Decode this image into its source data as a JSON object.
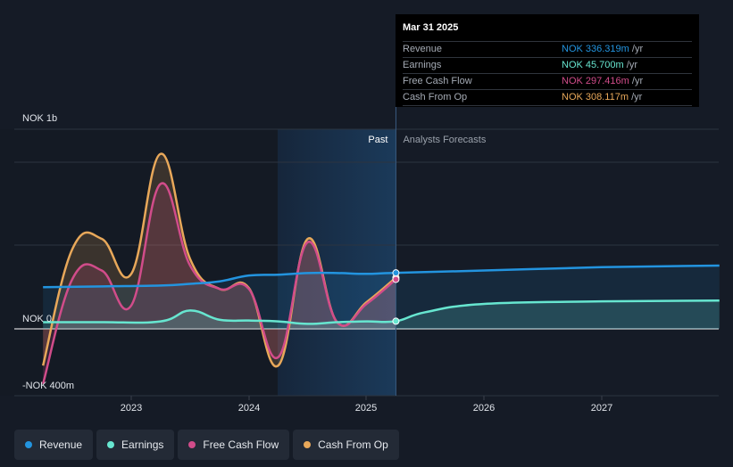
{
  "colors": {
    "background": "#151b26",
    "revenue": "#2394df",
    "earnings": "#67e6d0",
    "free_cash_flow": "#d14c8a",
    "cash_from_op": "#e8a85a",
    "past_region": "#19324d"
  },
  "tooltip": {
    "date": "Mar 31 2025",
    "rows": [
      {
        "name": "Revenue",
        "value": "NOK 336.319m",
        "unit": " /yr",
        "color": "#2394df"
      },
      {
        "name": "Earnings",
        "value": "NOK 45.700m",
        "unit": " /yr",
        "color": "#67e6d0"
      },
      {
        "name": "Free Cash Flow",
        "value": "NOK 297.416m",
        "unit": " /yr",
        "color": "#d14c8a"
      },
      {
        "name": "Cash From Op",
        "value": "NOK 308.117m",
        "unit": " /yr",
        "color": "#e8a85a"
      }
    ]
  },
  "legend": [
    {
      "label": "Revenue",
      "color": "#2394df",
      "icon": "dot-icon"
    },
    {
      "label": "Earnings",
      "color": "#67e6d0",
      "icon": "dot-icon"
    },
    {
      "label": "Free Cash Flow",
      "color": "#d14c8a",
      "icon": "dot-icon"
    },
    {
      "label": "Cash From Op",
      "color": "#e8a85a",
      "icon": "dot-icon"
    }
  ],
  "chart_data": {
    "type": "line",
    "title": "",
    "xlabel": "",
    "ylabel": "",
    "y_tick_labels": [
      "NOK 1b",
      "NOK 0",
      "-NOK 400m"
    ],
    "x_tick_labels": [
      "2023",
      "2024",
      "2025",
      "2026",
      "2027"
    ],
    "region_labels": {
      "past": "Past",
      "forecast": "Analysts Forecasts"
    },
    "past_end": 2025.25,
    "xlim": [
      2022.25,
      2028.0
    ],
    "ylim": [
      -400,
      1200
    ],
    "unit": "NOK m",
    "grid": true,
    "legend_position": "bottom",
    "series": [
      {
        "name": "Revenue",
        "key": "revenue",
        "x": [
          2022.25,
          2022.75,
          2023.25,
          2023.5,
          2023.75,
          2024.0,
          2024.25,
          2024.5,
          2024.75,
          2025.0,
          2025.25,
          2026.0,
          2027.0,
          2028.0
        ],
        "y": [
          250,
          255,
          260,
          270,
          285,
          320,
          325,
          335,
          335,
          330,
          336,
          350,
          370,
          380
        ]
      },
      {
        "name": "Earnings",
        "key": "earnings",
        "x": [
          2022.25,
          2022.75,
          2023.25,
          2023.5,
          2023.75,
          2024.0,
          2024.25,
          2024.5,
          2024.75,
          2025.0,
          2025.25,
          2025.5,
          2026.0,
          2027.0,
          2028.0
        ],
        "y": [
          40,
          40,
          45,
          110,
          55,
          50,
          45,
          30,
          40,
          45,
          46,
          100,
          150,
          165,
          170
        ]
      },
      {
        "name": "Free Cash Flow",
        "key": "free_cash_flow",
        "x": [
          2022.25,
          2022.5,
          2022.75,
          2023.0,
          2023.25,
          2023.5,
          2023.75,
          2024.0,
          2024.25,
          2024.5,
          2024.75,
          2025.0,
          2025.25
        ],
        "y": [
          -330,
          300,
          350,
          140,
          870,
          380,
          240,
          240,
          -170,
          520,
          40,
          150,
          297
        ]
      },
      {
        "name": "Cash From Op",
        "key": "cash_from_op",
        "x": [
          2022.25,
          2022.5,
          2022.75,
          2023.0,
          2023.25,
          2023.5,
          2023.75,
          2024.0,
          2024.25,
          2024.5,
          2024.75,
          2025.0,
          2025.25
        ],
        "y": [
          -220,
          480,
          540,
          330,
          1050,
          420,
          240,
          245,
          -220,
          540,
          40,
          160,
          308
        ]
      }
    ]
  }
}
